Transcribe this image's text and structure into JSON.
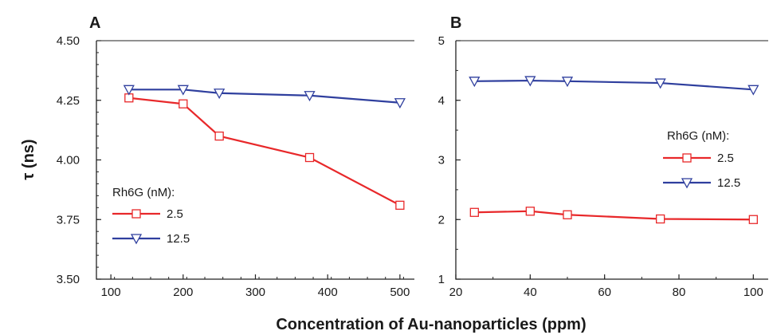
{
  "figure": {
    "ylabel": "τ (ns)",
    "xlabel": "Concentration of Au-nanoparticles (ppm)"
  },
  "chart_data": [
    {
      "panel": "A",
      "type": "line",
      "legend_title": "Rh6G (nM):",
      "legend_position": "bottom-left",
      "xlim": [
        80,
        520
      ],
      "ylim": [
        3.5,
        4.5
      ],
      "xticks": [
        100,
        200,
        300,
        400,
        500
      ],
      "yticks": [
        "3.50",
        "3.75",
        "4.00",
        "4.25",
        "4.50"
      ],
      "series": [
        {
          "name": "2.5",
          "marker": "square",
          "color": "#e8282a",
          "x": [
            125,
            200,
            250,
            375,
            500
          ],
          "y": [
            4.26,
            4.235,
            4.1,
            4.01,
            3.81
          ]
        },
        {
          "name": "12.5",
          "marker": "triangle-down",
          "color": "#2f3f9e",
          "x": [
            125,
            200,
            250,
            375,
            500
          ],
          "y": [
            4.295,
            4.295,
            4.28,
            4.27,
            4.24
          ]
        }
      ]
    },
    {
      "panel": "B",
      "type": "line",
      "legend_title": "Rh6G (nM):",
      "legend_position": "center-right",
      "xlim": [
        20,
        104
      ],
      "ylim": [
        1,
        5
      ],
      "xticks": [
        20,
        40,
        60,
        80,
        100
      ],
      "yticks": [
        "1",
        "2",
        "3",
        "4",
        "5"
      ],
      "series": [
        {
          "name": "2.5",
          "marker": "square",
          "color": "#e8282a",
          "x": [
            25,
            40,
            50,
            75,
            100
          ],
          "y": [
            2.12,
            2.14,
            2.08,
            2.01,
            2.0
          ]
        },
        {
          "name": "12.5",
          "marker": "triangle-down",
          "color": "#2f3f9e",
          "x": [
            25,
            40,
            50,
            75,
            100
          ],
          "y": [
            4.32,
            4.33,
            4.32,
            4.29,
            4.18
          ]
        }
      ]
    }
  ]
}
